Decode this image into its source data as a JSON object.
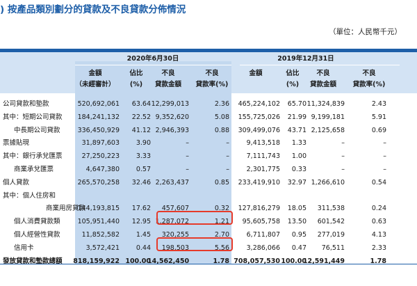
{
  "title": ") 按產品類別劃分的貸款及不良貸款分佈情況",
  "unit_note": "（單位：人民幣千元）",
  "groups": [
    "2020年6月30日",
    "2019年12月31日"
  ],
  "headers_2020": [
    [
      "金額",
      "（未經審計）"
    ],
    [
      "佔比",
      "(%)"
    ],
    [
      "不良",
      "貸款金額"
    ],
    [
      "不良",
      "貸款率(%)"
    ]
  ],
  "headers_2019": [
    [
      "金額",
      ""
    ],
    [
      "佔比",
      "(%)"
    ],
    [
      "不良",
      "貸款金額"
    ],
    [
      "不良",
      "貸款率(%)"
    ]
  ],
  "rows": [
    {
      "label": "公司貸款和墊款",
      "values": [
        "520,692,061",
        "63.64",
        "12,299,013",
        "2.36",
        "465,224,102",
        "65.70",
        "11,324,839",
        "2.43"
      ]
    },
    {
      "label": "其中：短期公司貸款",
      "values": [
        "184,241,132",
        "22.52",
        "9,352,620",
        "5.08",
        "155,725,026",
        "21.99",
        "9,199,181",
        "5.91"
      ]
    },
    {
      "label": "中長期公司貸款",
      "indent": 1,
      "values": [
        "336,450,929",
        "41.12",
        "2,946,393",
        "0.88",
        "309,499,076",
        "43.71",
        "2,125,658",
        "0.69"
      ]
    },
    {
      "label": "票據貼現",
      "values": [
        "31,897,603",
        "3.90",
        "–",
        "–",
        "9,413,518",
        "1.33",
        "–",
        "–"
      ]
    },
    {
      "label": "其中：銀行承兌匯票",
      "values": [
        "27,250,223",
        "3.33",
        "–",
        "–",
        "7,111,743",
        "1.00",
        "–",
        "–"
      ]
    },
    {
      "label": "商業承兌匯票",
      "indent": 1,
      "values": [
        "4,647,380",
        "0.57",
        "–",
        "–",
        "2,301,775",
        "0.33",
        "–",
        "–"
      ]
    },
    {
      "label": "個人貸款",
      "values": [
        "265,570,258",
        "32.46",
        "2,263,437",
        "0.85",
        "233,419,910",
        "32.97",
        "1,266,610",
        "0.54"
      ]
    },
    {
      "label": "其中：個人住房和",
      "values": [
        "",
        "",
        "",
        "",
        "",
        "",
        "",
        ""
      ]
    },
    {
      "label": "商業用房貸款",
      "indent": 2,
      "values": [
        "144,193,815",
        "17.62",
        "457,607",
        "0.32",
        "127,816,279",
        "18.05",
        "311,538",
        "0.24"
      ]
    },
    {
      "label": "個人消費貸款類",
      "indent": 1,
      "values": [
        "105,951,440",
        "12.95",
        "1,287,072",
        "1.21",
        "95,605,758",
        "13.50",
        "601,542",
        "0.63"
      ]
    },
    {
      "label": "個人經營性貸款",
      "indent": 1,
      "values": [
        "11,852,582",
        "1.45",
        "320,255",
        "2.70",
        "6,711,807",
        "0.95",
        "277,019",
        "4.13"
      ]
    },
    {
      "label": "信用卡",
      "indent": 1,
      "values": [
        "3,572,421",
        "0.44",
        "198,503",
        "5.56",
        "3,286,066",
        "0.47",
        "76,511",
        "2.33"
      ]
    },
    {
      "label": "發放貸款和墊款總額",
      "bold": true,
      "values": [
        "818,159,922",
        "100.00",
        "14,562,450",
        "1.78",
        "708,057,530",
        "100.00",
        "12,591,449",
        "1.78"
      ]
    }
  ],
  "colors": {
    "title": "#1d5ea8",
    "band": "#1e5fa8",
    "header_bg": "#d3e3f4",
    "shaded_col": "#c3d8ef",
    "highlight": "#e63a2a"
  }
}
